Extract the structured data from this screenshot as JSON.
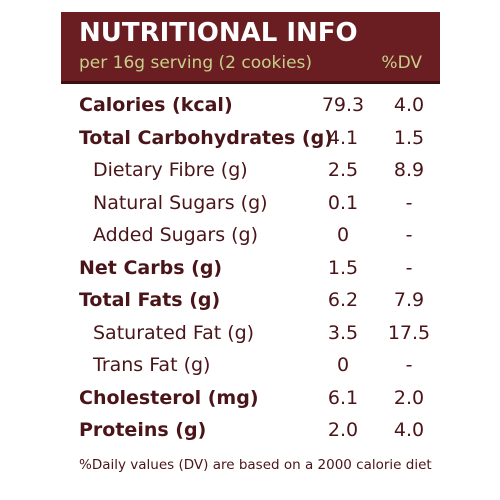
{
  "header": {
    "title": "NUTRITIONAL INFO",
    "serving": "per 16g serving (2 cookies)",
    "dv_label": "%DV"
  },
  "rows": [
    {
      "name": "Calories (kcal)",
      "value": "79.3",
      "dv": "4.0",
      "style": "bold"
    },
    {
      "name": "Total Carbohydrates (g)",
      "value": "4.1",
      "dv": "1.5",
      "style": "bold"
    },
    {
      "name": "Dietary Fibre (g)",
      "value": "2.5",
      "dv": "8.9",
      "style": "sub"
    },
    {
      "name": "Natural Sugars (g)",
      "value": "0.1",
      "dv": "-",
      "style": "sub"
    },
    {
      "name": "Added Sugars (g)",
      "value": "0",
      "dv": "-",
      "style": "sub"
    },
    {
      "name": "Net Carbs (g)",
      "value": "1.5",
      "dv": "-",
      "style": "bold"
    },
    {
      "name": "Total Fats (g)",
      "value": "6.2",
      "dv": "7.9",
      "style": "bold"
    },
    {
      "name": "Saturated Fat (g)",
      "value": "3.5",
      "dv": "17.5",
      "style": "sub"
    },
    {
      "name": "Trans Fat (g)",
      "value": "0",
      "dv": "-",
      "style": "sub"
    },
    {
      "name": "Cholesterol (mg)",
      "value": "6.1",
      "dv": "2.0",
      "style": "bold"
    },
    {
      "name": "Proteins (g)",
      "value": "2.0",
      "dv": "4.0",
      "style": "bold"
    }
  ],
  "footer": "%Daily values (DV) are based on a 2000 calorie diet",
  "colors": {
    "header_bg": "#6a1e22",
    "header_sub_text": "#c7d08a",
    "body_text": "#4a1518"
  }
}
